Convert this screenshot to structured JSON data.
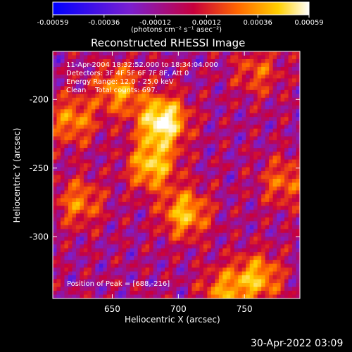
{
  "colorbar": {
    "ticks": [
      "-0.00059",
      "-0.00036",
      "-0.00012",
      "0.00012",
      "0.00036",
      "0.00059"
    ],
    "units": "(photons cm⁻² s⁻¹ asec⁻²)"
  },
  "image": {
    "title": "Reconstructed RHESSI Image",
    "info_lines": [
      "11-Apr-2004 18:32:52.000 to 18:34:04.000",
      "Detectors: 3F 4F 5F 6F 7F 8F, Att 0",
      "Energy Range: 12.0 - 25.0 keV",
      "Clean    Total counts: 697."
    ],
    "peak_label": "Position of Peak = [688,-216]"
  },
  "chart_data": {
    "type": "heatmap",
    "title": "Reconstructed RHESSI Image",
    "xlabel": "Heliocentric X (arcsec)",
    "ylabel": "Heliocentric Y (arcsec)",
    "xlim": [
      605,
      792
    ],
    "ylim": [
      -345,
      -165
    ],
    "x_ticks": [
      650,
      700,
      750
    ],
    "y_ticks": [
      -200,
      -250,
      -300
    ],
    "value_range": [
      -0.00059,
      0.00059
    ],
    "colormap": "blue-purple-red-yellow-white",
    "colormap_stops": [
      "#0000ff",
      "#7a1fd0",
      "#c8003c",
      "#ff6600",
      "#ffd000",
      "#ffffff"
    ],
    "sources": [
      {
        "x": 688,
        "y": -216,
        "amp": 1.0
      },
      {
        "x": 680,
        "y": -248,
        "amp": 0.7
      },
      {
        "x": 705,
        "y": -283,
        "amp": 0.65
      },
      {
        "x": 655,
        "y": -193,
        "amp": 0.55
      },
      {
        "x": 620,
        "y": -215,
        "amp": 0.5
      },
      {
        "x": 625,
        "y": -275,
        "amp": 0.45
      },
      {
        "x": 760,
        "y": -330,
        "amp": 0.6
      },
      {
        "x": 735,
        "y": -340,
        "amp": 0.5
      },
      {
        "x": 780,
        "y": -260,
        "amp": 0.4
      },
      {
        "x": 760,
        "y": -180,
        "amp": 0.35
      }
    ]
  },
  "footer": {
    "timestamp": "30-Apr-2022 03:09"
  }
}
